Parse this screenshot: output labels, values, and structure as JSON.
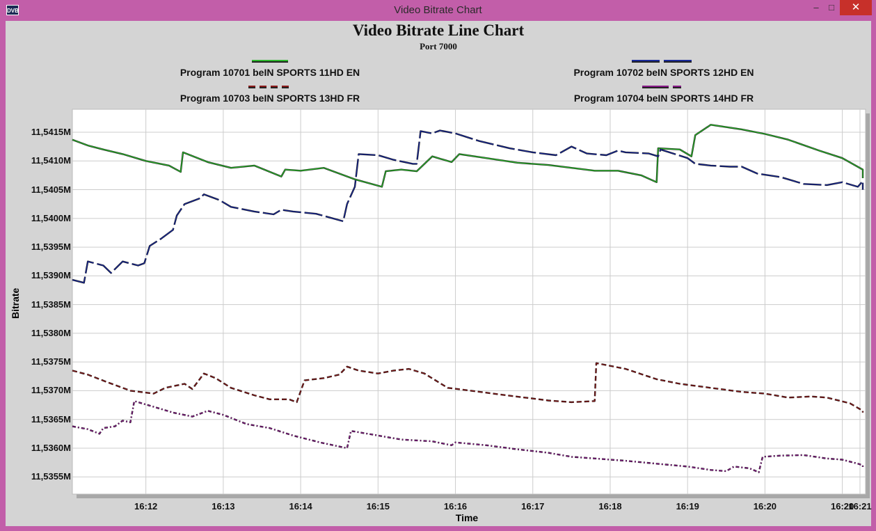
{
  "window": {
    "title": "Video Bitrate Chart",
    "app_icon_text": "DVB",
    "min_glyph": "–",
    "max_glyph": "□",
    "close_glyph": "✕"
  },
  "chart_data": {
    "type": "line",
    "title": "Video Bitrate Line Chart",
    "subtitle": "Port 7000",
    "xlabel": "Time",
    "ylabel": "Bitrate",
    "ylim": [
      11.5352,
      11.5419
    ],
    "xlim": [
      11.05,
      21.3
    ],
    "grid": true,
    "y_ticks": [
      {
        "value": 11.5415,
        "label": "11,5415M"
      },
      {
        "value": 11.541,
        "label": "11,5410M"
      },
      {
        "value": 11.5405,
        "label": "11,5405M"
      },
      {
        "value": 11.54,
        "label": "11,5400M"
      },
      {
        "value": 11.5395,
        "label": "11,5395M"
      },
      {
        "value": 11.539,
        "label": "11,5390M"
      },
      {
        "value": 11.5385,
        "label": "11,5385M"
      },
      {
        "value": 11.538,
        "label": "11,5380M"
      },
      {
        "value": 11.5375,
        "label": "11,5375M"
      },
      {
        "value": 11.537,
        "label": "11,5370M"
      },
      {
        "value": 11.5365,
        "label": "11,5365M"
      },
      {
        "value": 11.536,
        "label": "11,5360M"
      },
      {
        "value": 11.5355,
        "label": "11,5355M"
      }
    ],
    "x_ticks": [
      {
        "value": 12,
        "label": "16:12"
      },
      {
        "value": 13,
        "label": "16:13"
      },
      {
        "value": 14,
        "label": "16:14"
      },
      {
        "value": 15,
        "label": "16:15"
      },
      {
        "value": 16,
        "label": "16:16"
      },
      {
        "value": 17,
        "label": "16:17"
      },
      {
        "value": 18,
        "label": "16:18"
      },
      {
        "value": 19,
        "label": "16:19"
      },
      {
        "value": 20,
        "label": "16:20"
      },
      {
        "value": 21,
        "label": "16:20"
      },
      {
        "value": 22,
        "label": "16:21"
      }
    ],
    "legend": [
      {
        "label": "Program 10701 beIN SPORTS 11HD EN",
        "color": "#2db82d",
        "dash": "solid"
      },
      {
        "label": "Program 10702 beIN SPORTS 12HD EN",
        "color": "#1a2a9a",
        "dash": "long-dash"
      },
      {
        "label": "Program 10703 beIN SPORTS 13HD FR",
        "color": "#8b1a1a",
        "dash": "dash"
      },
      {
        "label": "Program 10704 beIN SPORTS 14HD FR",
        "color": "#8a1a8a",
        "dash": "dash-dot"
      }
    ],
    "series": [
      {
        "name": "Program 10701 beIN SPORTS 11HD EN",
        "color": "#2db82d",
        "points": [
          [
            11.05,
            11.54137
          ],
          [
            11.25,
            11.54127
          ],
          [
            11.45,
            11.5412
          ],
          [
            11.7,
            11.54112
          ],
          [
            12.0,
            11.541
          ],
          [
            12.3,
            11.54092
          ],
          [
            12.45,
            11.54081
          ],
          [
            12.48,
            11.54115
          ],
          [
            12.8,
            11.54098
          ],
          [
            13.1,
            11.54088
          ],
          [
            13.4,
            11.54092
          ],
          [
            13.75,
            11.54073
          ],
          [
            13.8,
            11.54085
          ],
          [
            14.0,
            11.54083
          ],
          [
            14.3,
            11.54088
          ],
          [
            14.7,
            11.54068
          ],
          [
            15.05,
            11.54055
          ],
          [
            15.1,
            11.54082
          ],
          [
            15.3,
            11.54085
          ],
          [
            15.5,
            11.54082
          ],
          [
            15.7,
            11.54108
          ],
          [
            15.95,
            11.54098
          ],
          [
            16.05,
            11.54112
          ],
          [
            16.4,
            11.54105
          ],
          [
            16.8,
            11.54097
          ],
          [
            17.2,
            11.54093
          ],
          [
            17.5,
            11.54088
          ],
          [
            17.8,
            11.54083
          ],
          [
            18.1,
            11.54083
          ],
          [
            18.4,
            11.54075
          ],
          [
            18.6,
            11.54063
          ],
          [
            18.62,
            11.54122
          ],
          [
            18.9,
            11.5412
          ],
          [
            19.05,
            11.54108
          ],
          [
            19.1,
            11.54145
          ],
          [
            19.3,
            11.54163
          ],
          [
            19.7,
            11.54155
          ],
          [
            20.0,
            11.54147
          ],
          [
            20.3,
            11.54137
          ],
          [
            20.7,
            11.54118
          ],
          [
            21.0,
            11.54105
          ],
          [
            21.3,
            11.54085
          ],
          [
            21.55,
            11.5407
          ]
        ]
      },
      {
        "name": "Program 10702 beIN SPORTS 12HD EN",
        "color": "#1a2a9a",
        "points": [
          [
            11.05,
            11.53893
          ],
          [
            11.2,
            11.53888
          ],
          [
            11.25,
            11.53925
          ],
          [
            11.45,
            11.53918
          ],
          [
            11.55,
            11.53905
          ],
          [
            11.7,
            11.53925
          ],
          [
            11.9,
            11.53918
          ],
          [
            11.98,
            11.53922
          ],
          [
            12.05,
            11.53952
          ],
          [
            12.2,
            11.53965
          ],
          [
            12.35,
            11.5398
          ],
          [
            12.4,
            11.54005
          ],
          [
            12.5,
            11.54025
          ],
          [
            12.7,
            11.54035
          ],
          [
            12.75,
            11.54042
          ],
          [
            12.95,
            11.54032
          ],
          [
            13.1,
            11.5402
          ],
          [
            13.4,
            11.54012
          ],
          [
            13.65,
            11.54007
          ],
          [
            13.75,
            11.54015
          ],
          [
            13.9,
            11.54012
          ],
          [
            14.2,
            11.54008
          ],
          [
            14.55,
            11.53995
          ],
          [
            14.6,
            11.54025
          ],
          [
            14.7,
            11.54055
          ],
          [
            14.75,
            11.54112
          ],
          [
            15.0,
            11.5411
          ],
          [
            15.2,
            11.54102
          ],
          [
            15.45,
            11.54095
          ],
          [
            15.5,
            11.54095
          ],
          [
            15.55,
            11.54152
          ],
          [
            15.7,
            11.54148
          ],
          [
            15.8,
            11.54153
          ],
          [
            16.0,
            11.54148
          ],
          [
            16.3,
            11.54135
          ],
          [
            16.7,
            11.54122
          ],
          [
            17.0,
            11.54115
          ],
          [
            17.3,
            11.5411
          ],
          [
            17.5,
            11.54125
          ],
          [
            17.7,
            11.54113
          ],
          [
            17.95,
            11.5411
          ],
          [
            18.1,
            11.54118
          ],
          [
            18.2,
            11.54115
          ],
          [
            18.5,
            11.54113
          ],
          [
            18.62,
            11.54108
          ],
          [
            18.65,
            11.5412
          ],
          [
            19.0,
            11.54105
          ],
          [
            19.1,
            11.54095
          ],
          [
            19.3,
            11.54092
          ],
          [
            19.55,
            11.5409
          ],
          [
            19.7,
            11.5409
          ],
          [
            19.9,
            11.54078
          ],
          [
            20.2,
            11.54072
          ],
          [
            20.5,
            11.5406
          ],
          [
            20.8,
            11.54058
          ],
          [
            21.0,
            11.54063
          ],
          [
            21.2,
            11.54055
          ],
          [
            21.4,
            11.54065
          ],
          [
            21.55,
            11.5405
          ]
        ]
      },
      {
        "name": "Program 10703 beIN SPORTS 13HD FR",
        "color": "#8b1a1a",
        "points": [
          [
            11.05,
            11.53735
          ],
          [
            11.25,
            11.53728
          ],
          [
            11.5,
            11.53715
          ],
          [
            11.8,
            11.537
          ],
          [
            12.1,
            11.53695
          ],
          [
            12.25,
            11.53705
          ],
          [
            12.5,
            11.53712
          ],
          [
            12.6,
            11.53703
          ],
          [
            12.75,
            11.5373
          ],
          [
            12.9,
            11.53722
          ],
          [
            13.1,
            11.53705
          ],
          [
            13.4,
            11.53692
          ],
          [
            13.6,
            11.53685
          ],
          [
            13.85,
            11.53685
          ],
          [
            13.95,
            11.5368
          ],
          [
            14.05,
            11.53718
          ],
          [
            14.3,
            11.53722
          ],
          [
            14.5,
            11.53728
          ],
          [
            14.6,
            11.53742
          ],
          [
            14.75,
            11.53735
          ],
          [
            15.0,
            11.5373
          ],
          [
            15.2,
            11.53735
          ],
          [
            15.4,
            11.53738
          ],
          [
            15.6,
            11.5373
          ],
          [
            15.9,
            11.53705
          ],
          [
            16.2,
            11.537
          ],
          [
            16.6,
            11.53693
          ],
          [
            16.9,
            11.53688
          ],
          [
            17.2,
            11.53683
          ],
          [
            17.5,
            11.5368
          ],
          [
            17.8,
            11.53682
          ],
          [
            17.82,
            11.53748
          ],
          [
            18.2,
            11.53738
          ],
          [
            18.6,
            11.5372
          ],
          [
            18.9,
            11.53712
          ],
          [
            19.3,
            11.53705
          ],
          [
            19.7,
            11.53698
          ],
          [
            20.0,
            11.53695
          ],
          [
            20.3,
            11.53688
          ],
          [
            20.6,
            11.5369
          ],
          [
            20.8,
            11.53688
          ],
          [
            21.1,
            11.53678
          ],
          [
            21.4,
            11.53665
          ],
          [
            21.55,
            11.53662
          ]
        ]
      },
      {
        "name": "Program 10704 beIN SPORTS 14HD FR",
        "color": "#8a1a8a",
        "points": [
          [
            11.05,
            11.53638
          ],
          [
            11.25,
            11.53633
          ],
          [
            11.4,
            11.53625
          ],
          [
            11.45,
            11.53635
          ],
          [
            11.6,
            11.53638
          ],
          [
            11.7,
            11.53648
          ],
          [
            11.8,
            11.53645
          ],
          [
            11.85,
            11.53682
          ],
          [
            12.1,
            11.53672
          ],
          [
            12.35,
            11.53662
          ],
          [
            12.6,
            11.53655
          ],
          [
            12.8,
            11.53665
          ],
          [
            13.0,
            11.53658
          ],
          [
            13.3,
            11.53642
          ],
          [
            13.6,
            11.53635
          ],
          [
            13.9,
            11.53622
          ],
          [
            14.25,
            11.5361
          ],
          [
            14.6,
            11.536
          ],
          [
            14.65,
            11.5363
          ],
          [
            15.0,
            11.53622
          ],
          [
            15.3,
            11.53615
          ],
          [
            15.7,
            11.53612
          ],
          [
            15.95,
            11.53605
          ],
          [
            16.0,
            11.5361
          ],
          [
            16.4,
            11.53605
          ],
          [
            16.8,
            11.53598
          ],
          [
            17.2,
            11.53592
          ],
          [
            17.5,
            11.53585
          ],
          [
            17.8,
            11.53582
          ],
          [
            18.2,
            11.53578
          ],
          [
            18.6,
            11.53573
          ],
          [
            19.0,
            11.53568
          ],
          [
            19.3,
            11.53562
          ],
          [
            19.5,
            11.5356
          ],
          [
            19.6,
            11.53568
          ],
          [
            19.8,
            11.53565
          ],
          [
            19.92,
            11.53558
          ],
          [
            19.97,
            11.53585
          ],
          [
            20.2,
            11.53587
          ],
          [
            20.5,
            11.53588
          ],
          [
            20.8,
            11.53582
          ],
          [
            21.0,
            11.5358
          ],
          [
            21.2,
            11.53573
          ],
          [
            21.4,
            11.5357
          ],
          [
            21.55,
            11.53565
          ]
        ]
      }
    ]
  }
}
